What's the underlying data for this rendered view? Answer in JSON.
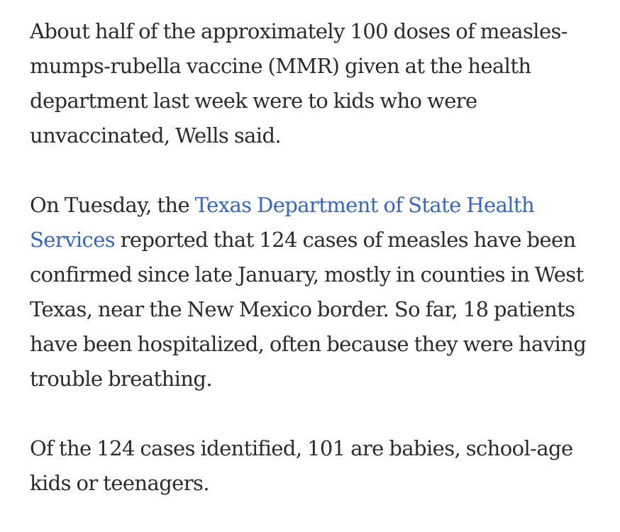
{
  "article": {
    "paragraph1": "About half of the approximately 100 doses of measles-mumps-rubella vaccine (MMR) given at the health department last week were to kids who were unvaccinated, Wells said.",
    "paragraph2": {
      "before": "On Tuesday, the ",
      "link_text": "Texas Department of State Health Services",
      "after": " reported that 124 cases of measles have been confirmed since late January, mostly in counties in West Texas, near the New Mexico border. So far, 18 patients have been hospitalized, often because they were having trouble breathing."
    },
    "paragraph3": "Of the 124 cases identified, 101 are babies, school-age kids or teenagers."
  },
  "colors": {
    "text": "#2b2b2b",
    "link": "#3366cc",
    "background": "#ffffff"
  }
}
